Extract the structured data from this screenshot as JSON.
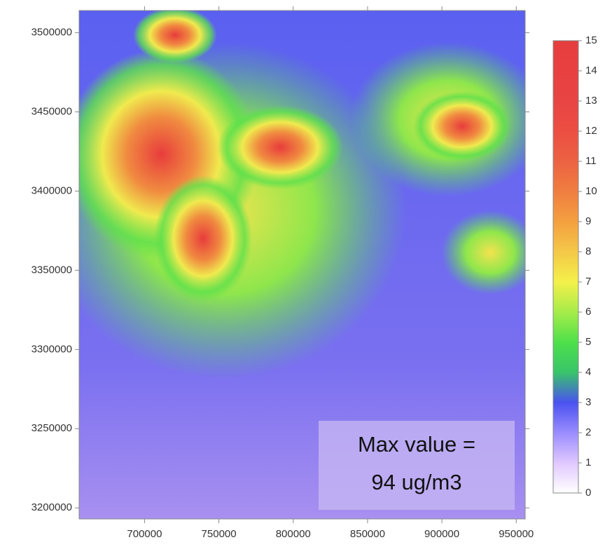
{
  "chart_data": {
    "type": "heatmap",
    "xlim": [
      656000,
      956000
    ],
    "xticks": [
      700000,
      750000,
      800000,
      850000,
      900000,
      950000
    ],
    "ylim": [
      3193000,
      3514000
    ],
    "yticks": [
      3200000,
      3250000,
      3300000,
      3350000,
      3400000,
      3450000,
      3500000
    ],
    "colorbar": {
      "range": [
        0,
        15
      ],
      "ticks": [
        0,
        1,
        2,
        3,
        4,
        5,
        6,
        7,
        8,
        9,
        10,
        11,
        12,
        13,
        14,
        15
      ],
      "colors": [
        "#ffffff",
        "#e0c8ff",
        "#9a8cff",
        "#4a52f0",
        "#38c46a",
        "#4ee04a",
        "#a6ec4a",
        "#f4f04a",
        "#f4c848",
        "#f4a040",
        "#f07e40",
        "#ec6242",
        "#ec4e42",
        "#e84444",
        "#e84040",
        "#e63e3e"
      ]
    },
    "annotation": [
      "Max value =",
      "94 ug/m3"
    ]
  }
}
